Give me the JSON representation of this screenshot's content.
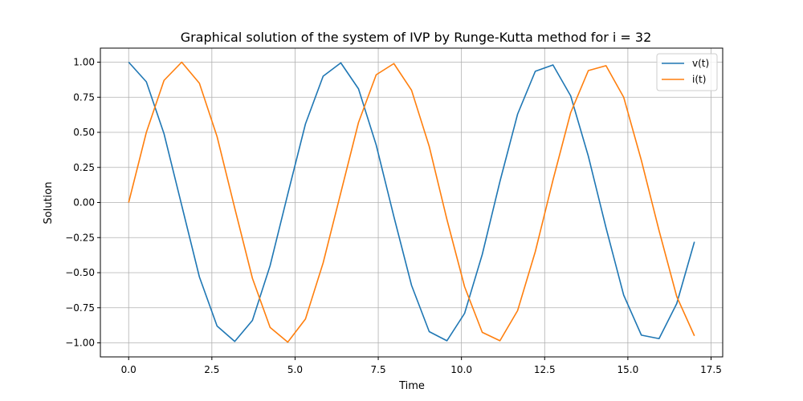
{
  "chart_data": {
    "type": "line",
    "title": "Graphical solution of the system of IVP by Runge-Kutta method for i = 32",
    "xlabel": "Time",
    "ylabel": "Solution",
    "xlim": [
      -0.85,
      17.85
    ],
    "ylim": [
      -1.1,
      1.1
    ],
    "xticks": [
      0.0,
      2.5,
      5.0,
      7.5,
      10.0,
      12.5,
      15.0,
      17.5
    ],
    "xtick_labels": [
      "0.0",
      "2.5",
      "5.0",
      "7.5",
      "10.0",
      "12.5",
      "15.0",
      "17.5"
    ],
    "yticks": [
      -1.0,
      -0.75,
      -0.5,
      -0.25,
      0.0,
      0.25,
      0.5,
      0.75,
      1.0
    ],
    "ytick_labels": [
      "−1.00",
      "−0.75",
      "−0.50",
      "−0.25",
      "0.00",
      "0.25",
      "0.50",
      "0.75",
      "1.00"
    ],
    "grid": true,
    "legend_position": "top-right",
    "x": [
      0.0,
      0.5313,
      1.0625,
      1.5938,
      2.125,
      2.6563,
      3.1875,
      3.7188,
      4.25,
      4.7813,
      5.3125,
      5.8438,
      6.375,
      6.9063,
      7.4375,
      7.9688,
      8.5,
      9.0313,
      9.5625,
      10.0938,
      10.625,
      11.1563,
      11.6875,
      12.2188,
      12.75,
      13.2813,
      13.8125,
      14.3438,
      14.875,
      15.4063,
      15.9375,
      16.4688,
      17.0
    ],
    "series": [
      {
        "name": "v(t)",
        "color": "#1f77b4",
        "values": [
          1.0,
          0.86,
          0.49,
          -0.02,
          -0.53,
          -0.88,
          -0.99,
          -0.84,
          -0.45,
          0.06,
          0.56,
          0.9,
          0.995,
          0.81,
          0.41,
          -0.1,
          -0.59,
          -0.92,
          -0.985,
          -0.79,
          -0.37,
          0.15,
          0.63,
          0.935,
          0.98,
          0.76,
          0.33,
          -0.18,
          -0.66,
          -0.945,
          -0.97,
          -0.72,
          -0.28
        ]
      },
      {
        "name": "i(t)",
        "color": "#ff7f0e",
        "values": [
          0.0,
          0.5,
          0.87,
          1.0,
          0.85,
          0.47,
          -0.04,
          -0.54,
          -0.89,
          -0.995,
          -0.83,
          -0.43,
          0.07,
          0.57,
          0.91,
          0.99,
          0.8,
          0.4,
          -0.12,
          -0.6,
          -0.925,
          -0.985,
          -0.77,
          -0.35,
          0.16,
          0.64,
          0.94,
          0.975,
          0.75,
          0.3,
          -0.2,
          -0.67,
          -0.95
        ]
      }
    ]
  }
}
